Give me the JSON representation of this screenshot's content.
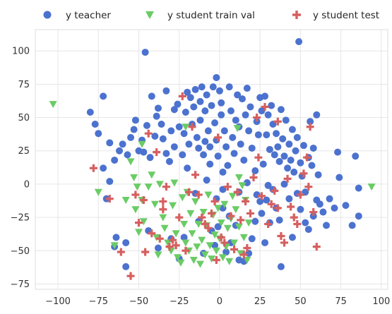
{
  "chart_data": {
    "type": "scatter",
    "title": "",
    "xlabel": "",
    "ylabel": "",
    "xlim": [
      -114,
      104
    ],
    "ylim": [
      -79,
      116
    ],
    "xticks": [
      -100,
      -75,
      -50,
      -25,
      0,
      25,
      50,
      75,
      100
    ],
    "yticks": [
      -75,
      -50,
      -25,
      0,
      25,
      50,
      75,
      100
    ],
    "grid": true,
    "legend": "top, single row above plot",
    "series": [
      {
        "name": "y teacher",
        "marker": "circle",
        "color": "#4c72cf",
        "points": [
          [
            -46,
            99
          ],
          [
            49,
            107
          ],
          [
            -80,
            54
          ],
          [
            -77,
            45
          ],
          [
            -75,
            38
          ],
          [
            -72,
            66
          ],
          [
            -68,
            31
          ],
          [
            -65,
            18
          ],
          [
            -62,
            25
          ],
          [
            -60,
            30
          ],
          [
            -57,
            22
          ],
          [
            -55,
            35
          ],
          [
            -53,
            41
          ],
          [
            -52,
            48
          ],
          [
            -50,
            25
          ],
          [
            -48,
            33
          ],
          [
            -47,
            24
          ],
          [
            -45,
            44
          ],
          [
            -43,
            20
          ],
          [
            -42,
            66
          ],
          [
            -40,
            36
          ],
          [
            -39,
            51
          ],
          [
            -38,
            57
          ],
          [
            -36,
            45
          ],
          [
            -35,
            34
          ],
          [
            -33,
            70
          ],
          [
            -33,
            23
          ],
          [
            -31,
            17
          ],
          [
            -30,
            40
          ],
          [
            -28,
            28
          ],
          [
            -28,
            56
          ],
          [
            -26,
            60
          ],
          [
            -25,
            43
          ],
          [
            -23,
            22
          ],
          [
            -22,
            38
          ],
          [
            -21,
            54
          ],
          [
            -20,
            12
          ],
          [
            -20,
            69
          ],
          [
            -19,
            30
          ],
          [
            -18,
            65
          ],
          [
            -17,
            45
          ],
          [
            -16,
            58
          ],
          [
            -15,
            71
          ],
          [
            -14,
            35
          ],
          [
            -13,
            27
          ],
          [
            -12,
            48
          ],
          [
            -12,
            62
          ],
          [
            -11,
            73
          ],
          [
            -10,
            22
          ],
          [
            -9,
            32
          ],
          [
            -9,
            55
          ],
          [
            -8,
            67
          ],
          [
            -7,
            40
          ],
          [
            -6,
            15
          ],
          [
            -6,
            28
          ],
          [
            -5,
            59
          ],
          [
            -4,
            73
          ],
          [
            -3,
            46
          ],
          [
            -2,
            80
          ],
          [
            -2,
            33
          ],
          [
            -1,
            21
          ],
          [
            0,
            70
          ],
          [
            1,
            61
          ],
          [
            1,
            52
          ],
          [
            2,
            9
          ],
          [
            3,
            40
          ],
          [
            4,
            28
          ],
          [
            5,
            14
          ],
          [
            6,
            73
          ],
          [
            7,
            55
          ],
          [
            8,
            35
          ],
          [
            9,
            23
          ],
          [
            10,
            48
          ],
          [
            11,
            67
          ],
          [
            12,
            43
          ],
          [
            13,
            30
          ],
          [
            14,
            64
          ],
          [
            15,
            18
          ],
          [
            16,
            52
          ],
          [
            17,
            72
          ],
          [
            18,
            40
          ],
          [
            19,
            58
          ],
          [
            20,
            27
          ],
          [
            22,
            10
          ],
          [
            23,
            47
          ],
          [
            24,
            37
          ],
          [
            25,
            65
          ],
          [
            26,
            55
          ],
          [
            27,
            15
          ],
          [
            28,
            66
          ],
          [
            29,
            37
          ],
          [
            30,
            52
          ],
          [
            31,
            26
          ],
          [
            32,
            59
          ],
          [
            33,
            45
          ],
          [
            34,
            22
          ],
          [
            35,
            38
          ],
          [
            36,
            28
          ],
          [
            37,
            17
          ],
          [
            38,
            56
          ],
          [
            39,
            34
          ],
          [
            40,
            21
          ],
          [
            41,
            48
          ],
          [
            42,
            12
          ],
          [
            43,
            30
          ],
          [
            44,
            18
          ],
          [
            45,
            41
          ],
          [
            46,
            9
          ],
          [
            47,
            25
          ],
          [
            48,
            35
          ],
          [
            50,
            16
          ],
          [
            51,
            6
          ],
          [
            52,
            29
          ],
          [
            53,
            -6
          ],
          [
            55,
            20
          ],
          [
            56,
            47
          ],
          [
            57,
            14
          ],
          [
            58,
            27
          ],
          [
            60,
            52
          ],
          [
            61,
            7
          ],
          [
            62,
            -15
          ],
          [
            64,
            -21
          ],
          [
            66,
            -31
          ],
          [
            68,
            -11
          ],
          [
            71,
            -18
          ],
          [
            73,
            24
          ],
          [
            74,
            5
          ],
          [
            78,
            -16
          ],
          [
            82,
            -31
          ],
          [
            84,
            21
          ],
          [
            86,
            -3
          ],
          [
            86,
            -24
          ],
          [
            -58,
            -44
          ],
          [
            -58,
            -62
          ],
          [
            -64,
            -40
          ],
          [
            -65,
            -47
          ],
          [
            -68,
            2
          ],
          [
            -70,
            -11
          ],
          [
            -72,
            12
          ],
          [
            -44,
            -35
          ],
          [
            -38,
            -48
          ],
          [
            -30,
            -41
          ],
          [
            -22,
            -40
          ],
          [
            -25,
            -56
          ],
          [
            -13,
            -28
          ],
          [
            -10,
            -52
          ],
          [
            -5,
            -35
          ],
          [
            -3,
            -46
          ],
          [
            -1,
            -32
          ],
          [
            2,
            -18
          ],
          [
            4,
            -51
          ],
          [
            7,
            -44
          ],
          [
            10,
            -31
          ],
          [
            12,
            -57
          ],
          [
            15,
            -58
          ],
          [
            18,
            -52
          ],
          [
            20,
            -41
          ],
          [
            23,
            -8
          ],
          [
            26,
            -22
          ],
          [
            28,
            -44
          ],
          [
            29,
            -12
          ],
          [
            31,
            -29
          ],
          [
            33,
            -4
          ],
          [
            35,
            -18
          ],
          [
            37,
            -27
          ],
          [
            38,
            -62
          ],
          [
            40,
            0
          ],
          [
            43,
            -11
          ],
          [
            45,
            -40
          ],
          [
            48,
            -7
          ],
          [
            50,
            -19
          ],
          [
            53,
            -29
          ],
          [
            55,
            -34
          ],
          [
            58,
            -24
          ],
          [
            60,
            -12
          ],
          [
            -15,
            -7
          ],
          [
            -8,
            3
          ],
          [
            -2,
            -11
          ],
          [
            2,
            -4
          ],
          [
            6,
            -24
          ],
          [
            12,
            -6
          ],
          [
            17,
            1
          ],
          [
            22,
            -28
          ],
          [
            25,
            -13
          ],
          [
            30,
            -1
          ]
        ]
      },
      {
        "name": "y student train val",
        "marker": "triangle-down",
        "color": "#6acc65",
        "points": [
          [
            -103,
            60
          ],
          [
            -75,
            -6
          ],
          [
            -65,
            -46
          ],
          [
            -58,
            -12
          ],
          [
            -55,
            17
          ],
          [
            -53,
            5
          ],
          [
            -52,
            -19
          ],
          [
            -50,
            -36
          ],
          [
            -48,
            -12
          ],
          [
            -47,
            -28
          ],
          [
            -44,
            -2
          ],
          [
            -42,
            7
          ],
          [
            -40,
            -15
          ],
          [
            -39,
            -40
          ],
          [
            -38,
            -53
          ],
          [
            -37,
            0
          ],
          [
            -35,
            -25
          ],
          [
            -34,
            -33
          ],
          [
            -32,
            -44
          ],
          [
            -30,
            -50
          ],
          [
            -29,
            -16
          ],
          [
            -28,
            1
          ],
          [
            -27,
            -37
          ],
          [
            -26,
            -55
          ],
          [
            -24,
            -59
          ],
          [
            -23,
            -10
          ],
          [
            -22,
            -30
          ],
          [
            -21,
            -44
          ],
          [
            -20,
            -6
          ],
          [
            -19,
            -50
          ],
          [
            -18,
            -22
          ],
          [
            -17,
            -37
          ],
          [
            -16,
            -57
          ],
          [
            -15,
            -13
          ],
          [
            -14,
            -47
          ],
          [
            -13,
            -30
          ],
          [
            -12,
            -60
          ],
          [
            -11,
            -42
          ],
          [
            -10,
            -21
          ],
          [
            -9,
            -53
          ],
          [
            -8,
            -31
          ],
          [
            -7,
            -8
          ],
          [
            -6,
            -46
          ],
          [
            -5,
            -56
          ],
          [
            -4,
            -23
          ],
          [
            -3,
            -38
          ],
          [
            -2,
            -50
          ],
          [
            -1,
            -18
          ],
          [
            0,
            -41
          ],
          [
            1,
            -29
          ],
          [
            2,
            -55
          ],
          [
            3,
            -15
          ],
          [
            4,
            -47
          ],
          [
            5,
            -33
          ],
          [
            6,
            -58
          ],
          [
            7,
            -26
          ],
          [
            8,
            -9
          ],
          [
            9,
            -44
          ],
          [
            10,
            -19
          ],
          [
            11,
            42
          ],
          [
            12,
            -32
          ],
          [
            13,
            -52
          ],
          [
            14,
            -1
          ],
          [
            15,
            -40
          ],
          [
            16,
            -12
          ],
          [
            17,
            -57
          ],
          [
            18,
            -29
          ],
          [
            -21,
            43
          ],
          [
            -48,
            30
          ],
          [
            -51,
            -2
          ],
          [
            94,
            -2
          ],
          [
            12,
            5
          ]
        ]
      },
      {
        "name": "y student test",
        "marker": "plus",
        "color": "#d65f5f",
        "points": [
          [
            -78,
            12
          ],
          [
            -68,
            -11
          ],
          [
            -61,
            -51
          ],
          [
            -55,
            -69
          ],
          [
            -52,
            -8
          ],
          [
            -50,
            -29
          ],
          [
            -47,
            -12
          ],
          [
            -46,
            -51
          ],
          [
            -44,
            38
          ],
          [
            -42,
            -37
          ],
          [
            -39,
            24
          ],
          [
            -37,
            -41
          ],
          [
            -35,
            -13
          ],
          [
            -33,
            -2
          ],
          [
            -31,
            -47
          ],
          [
            -29,
            -42
          ],
          [
            -27,
            -46
          ],
          [
            -25,
            -25
          ],
          [
            -23,
            66
          ],
          [
            -21,
            -50
          ],
          [
            -19,
            -6
          ],
          [
            -17,
            43
          ],
          [
            -15,
            7
          ],
          [
            -13,
            -8
          ],
          [
            -11,
            -25
          ],
          [
            -9,
            -30
          ],
          [
            -7,
            -33
          ],
          [
            -5,
            -22
          ],
          [
            -3,
            -13
          ],
          [
            -2,
            -57
          ],
          [
            -1,
            35
          ],
          [
            1,
            -40
          ],
          [
            3,
            -44
          ],
          [
            5,
            -2
          ],
          [
            7,
            -24
          ],
          [
            9,
            -49
          ],
          [
            11,
            -6
          ],
          [
            13,
            -27
          ],
          [
            15,
            -53
          ],
          [
            17,
            -48
          ],
          [
            19,
            -22
          ],
          [
            21,
            5
          ],
          [
            23,
            50
          ],
          [
            24,
            20
          ],
          [
            26,
            -9
          ],
          [
            28,
            58
          ],
          [
            30,
            -30
          ],
          [
            32,
            -15
          ],
          [
            34,
            -5
          ],
          [
            36,
            47
          ],
          [
            38,
            -39
          ],
          [
            40,
            -44
          ],
          [
            42,
            4
          ],
          [
            44,
            -17
          ],
          [
            46,
            -25
          ],
          [
            48,
            -30
          ],
          [
            50,
            -8
          ],
          [
            52,
            8
          ],
          [
            54,
            20
          ],
          [
            55,
            -2
          ],
          [
            56,
            43
          ],
          [
            58,
            -21
          ],
          [
            60,
            -47
          ],
          [
            36,
            -18
          ],
          [
            16,
            -13
          ],
          [
            -35,
            -19
          ]
        ]
      }
    ]
  }
}
